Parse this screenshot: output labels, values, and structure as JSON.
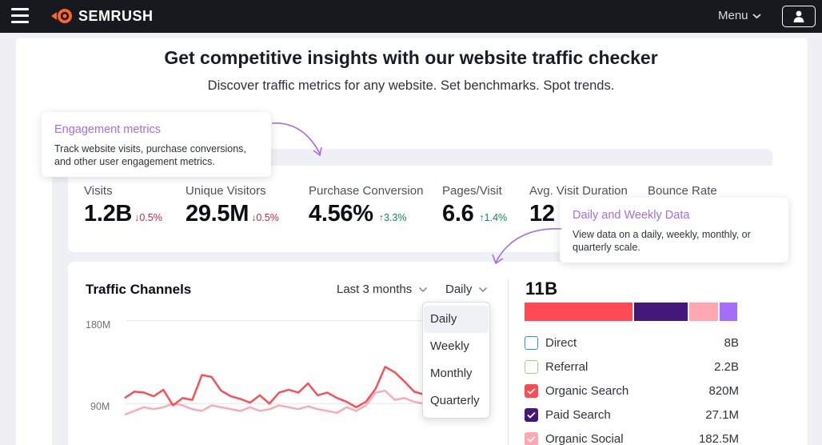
{
  "nav": {
    "brand": "SEMRUSH",
    "menu_label": "Menu",
    "icons": [
      "hamburger-icon",
      "semrush-fireball-logo",
      "chevron-down-icon",
      "user-icon"
    ]
  },
  "hero": {
    "title": "Get competitive insights with our website traffic checker",
    "subtitle": "Discover traffic metrics for any website. Set benchmarks. Spot trends."
  },
  "callouts": {
    "engagement": {
      "title": "Engagement metrics",
      "body": "Track website visits, purchase conversions, and other user engagement metrics."
    },
    "daily_weekly": {
      "title": "Daily and Weekly Data",
      "body": "View data on a daily, weekly, monthly, or quarterly scale."
    }
  },
  "metrics": [
    {
      "label": "Visits",
      "value": "1.2B",
      "delta": "0.5%",
      "direction": "down"
    },
    {
      "label": "Unique Visitors",
      "value": "29.5M",
      "delta": "0.5%",
      "direction": "down"
    },
    {
      "label": "Purchase Conversion",
      "value": "4.56%",
      "delta": "3.3%",
      "direction": "up"
    },
    {
      "label": "Pages/Visit",
      "value": "6.6",
      "delta": "1.4%",
      "direction": "up"
    },
    {
      "label": "Avg. Visit Duration",
      "value": "12",
      "delta": "",
      "direction": ""
    },
    {
      "label": "Bounce Rate",
      "value": "",
      "delta": "",
      "direction": ""
    }
  ],
  "traffic": {
    "title": "Traffic Channels",
    "range_label": "Last 3 months",
    "granularity_label": "Daily",
    "dropdown_options": [
      "Daily",
      "Weekly",
      "Monthly",
      "Quarterly"
    ],
    "selected_option": "Daily",
    "y_ticks": [
      "180M",
      "90M"
    ],
    "total": "11B",
    "channels": [
      {
        "name": "Direct",
        "value": "8B",
        "color": "#3b8ed6",
        "checked": false
      },
      {
        "name": "Referral",
        "value": "2.2B",
        "color": "#9fd47a",
        "checked": false
      },
      {
        "name": "Organic Search",
        "value": "820M",
        "color": "#ff4953",
        "checked": true
      },
      {
        "name": "Paid Search",
        "value": "27.1M",
        "color": "#43187a",
        "checked": true
      },
      {
        "name": "Organic Social",
        "value": "182.5M",
        "color": "#ffa8b3",
        "checked": true
      }
    ],
    "stack_colors": [
      "#ff4953",
      "#43187a",
      "#ffa8b3",
      "#a56ef8"
    ]
  },
  "chart_data": {
    "type": "line",
    "ylim": [
      45,
      185
    ],
    "y_ticks": [
      180,
      90
    ],
    "series": [
      {
        "color": "#ff4953",
        "values": [
          96,
          103,
          102,
          98,
          105,
          88,
          96,
          94,
          121,
          119,
          104,
          98,
          95,
          91,
          99,
          90,
          102,
          105,
          102,
          112,
          99,
          102,
          96,
          92,
          86,
          92,
          106,
          130,
          124,
          114,
          103,
          100
        ]
      },
      {
        "color": "#ffa8b3",
        "values": [
          78,
          82,
          86,
          84,
          86,
          90,
          88,
          84,
          82,
          88,
          86,
          84,
          82,
          86,
          82,
          84,
          88,
          86,
          84,
          87,
          84,
          82,
          80,
          86,
          82,
          88,
          102,
          104,
          94,
          96,
          92,
          90
        ]
      }
    ]
  }
}
